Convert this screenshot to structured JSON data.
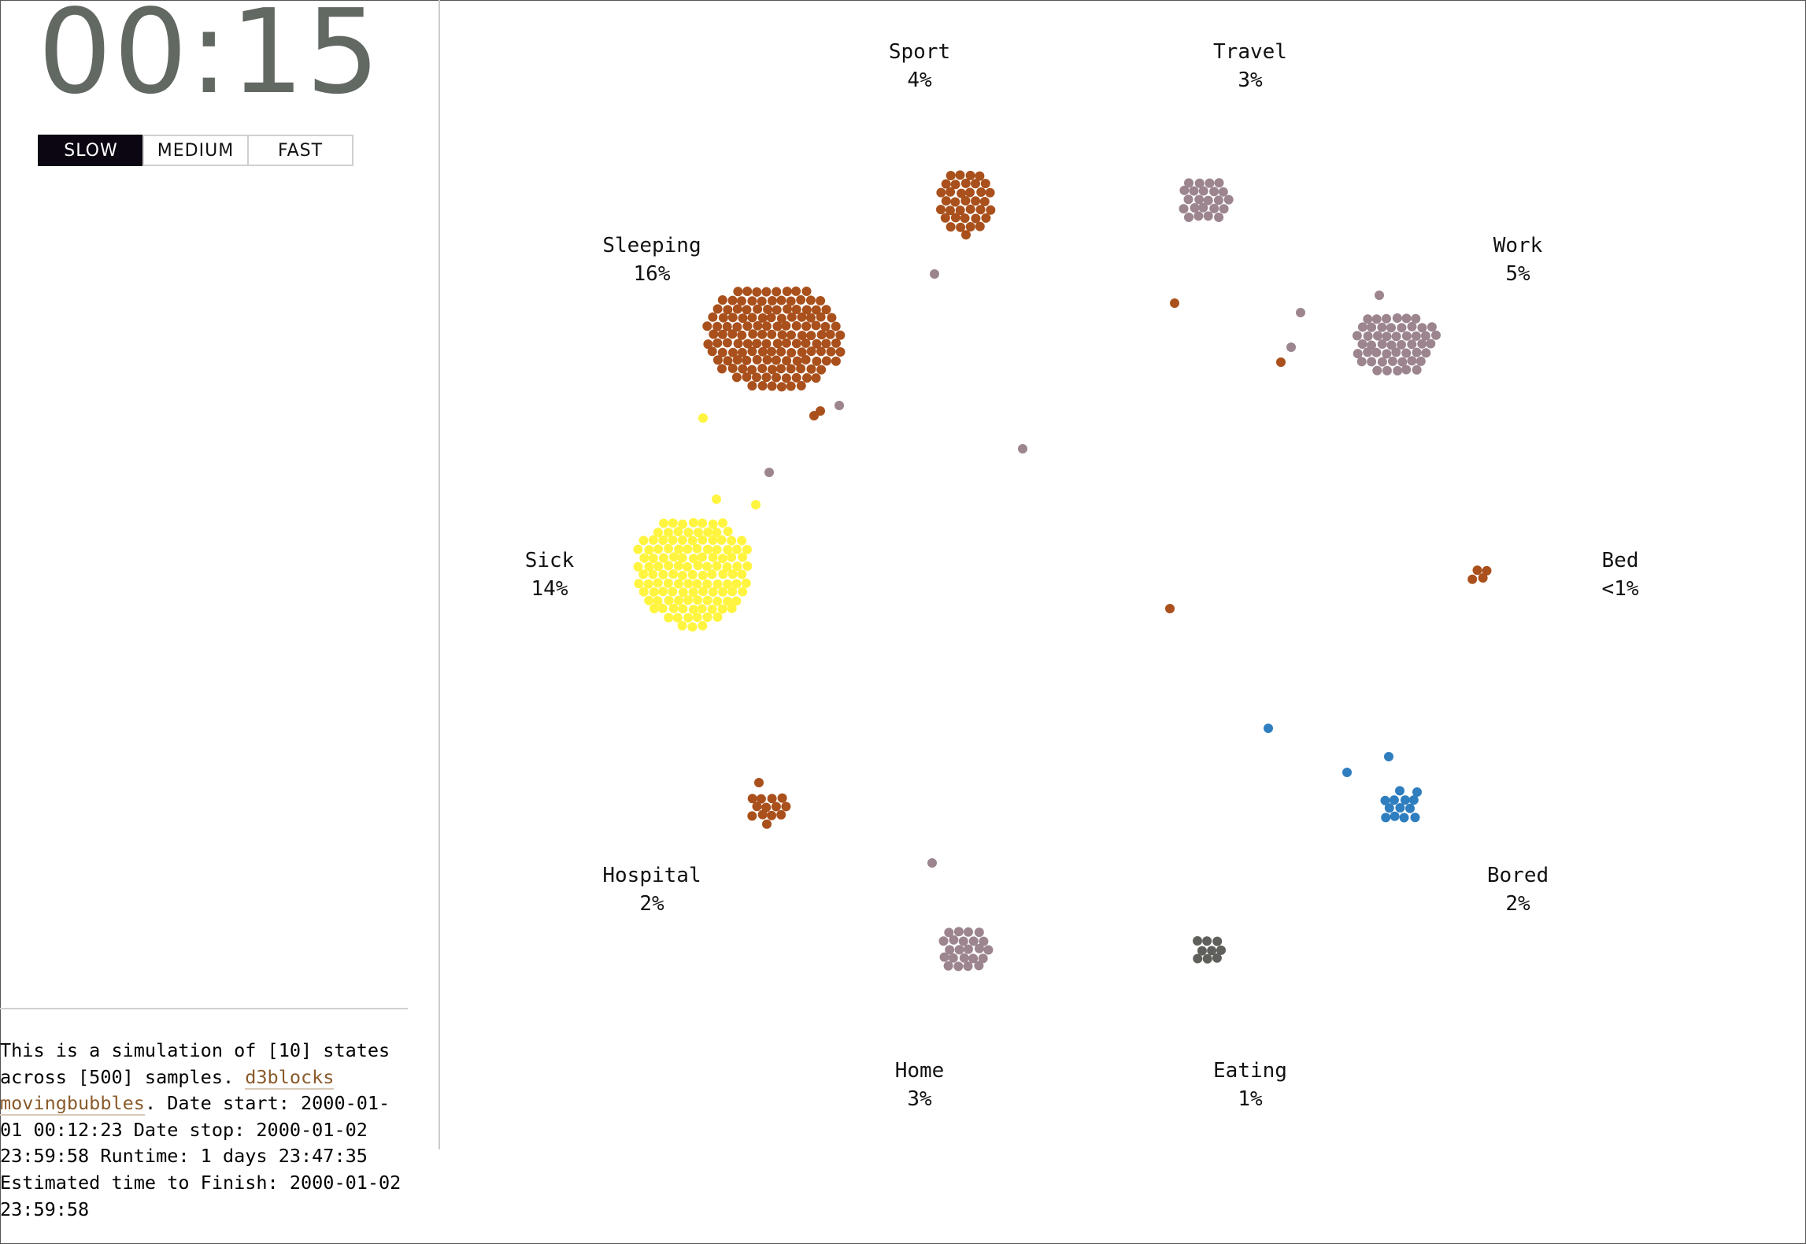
{
  "clock": {
    "time": "00:15"
  },
  "speed": {
    "options": [
      {
        "label": "SLOW",
        "active": true
      },
      {
        "label": "MEDIUM",
        "active": false
      },
      {
        "label": "FAST",
        "active": false
      }
    ]
  },
  "info": {
    "text1": "This is a simulation of [10] states across [500] samples. ",
    "link1": "d3blocks",
    "link2": "movingbubbles",
    "text2": ". Date start: 2000-01-01 00:12:23 Date stop: 2000-01-02 23:59:58 Runtime: 1 days 23:47:35 Estimated time to Finish: 2000-01-02 23:59:58"
  },
  "colors": {
    "brown": "#a9501c",
    "mauve": "#9c858e",
    "yellow": "#fff541",
    "blue": "#2f7ebf",
    "gray": "#5f605b",
    "text": "#111111"
  },
  "states": [
    {
      "name": "Sport",
      "percent": "4%"
    },
    {
      "name": "Travel",
      "percent": "3%"
    },
    {
      "name": "Sleeping",
      "percent": "16%"
    },
    {
      "name": "Work",
      "percent": "5%"
    },
    {
      "name": "Sick",
      "percent": "14%"
    },
    {
      "name": "Bed",
      "percent": "<1%"
    },
    {
      "name": "Hospital",
      "percent": "2%"
    },
    {
      "name": "Bored",
      "percent": "2%"
    },
    {
      "name": "Home",
      "percent": "3%"
    },
    {
      "name": "Eating",
      "percent": "1%"
    }
  ]
}
